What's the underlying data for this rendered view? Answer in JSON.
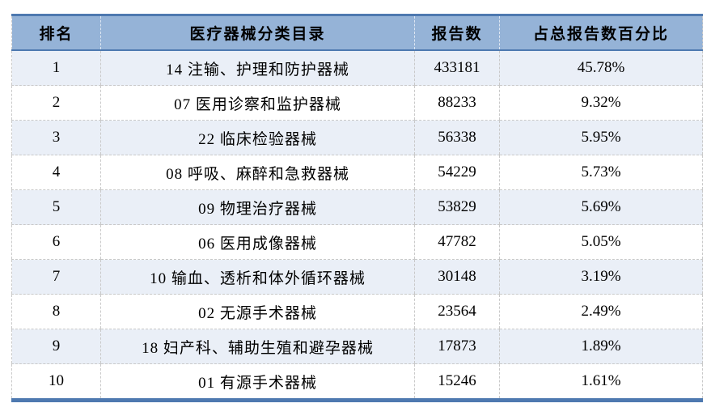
{
  "table": {
    "columns": [
      {
        "label": "排名"
      },
      {
        "label": "医疗器械分类目录"
      },
      {
        "label": "报告数"
      },
      {
        "label": "占总报告数百分比"
      }
    ],
    "rows": [
      {
        "rank": "1",
        "category": "14 注输、护理和防护器械",
        "reports": "433181",
        "percent": "45.78%"
      },
      {
        "rank": "2",
        "category": "07 医用诊察和监护器械",
        "reports": "88233",
        "percent": "9.32%"
      },
      {
        "rank": "3",
        "category": "22 临床检验器械",
        "reports": "56338",
        "percent": "5.95%"
      },
      {
        "rank": "4",
        "category": "08 呼吸、麻醉和急救器械",
        "reports": "54229",
        "percent": "5.73%"
      },
      {
        "rank": "5",
        "category": "09 物理治疗器械",
        "reports": "53829",
        "percent": "5.69%"
      },
      {
        "rank": "6",
        "category": "06 医用成像器械",
        "reports": "47782",
        "percent": "5.05%"
      },
      {
        "rank": "7",
        "category": "10 输血、透析和体外循环器械",
        "reports": "30148",
        "percent": "3.19%"
      },
      {
        "rank": "8",
        "category": "02 无源手术器械",
        "reports": "23564",
        "percent": "2.49%"
      },
      {
        "rank": "9",
        "category": "18 妇产科、辅助生殖和避孕器械",
        "reports": "17873",
        "percent": "1.89%"
      },
      {
        "rank": "10",
        "category": "01 有源手术器械",
        "reports": "15246",
        "percent": "1.61%"
      }
    ]
  },
  "colors": {
    "header_bg": "#95b3d7",
    "header_border": "#4e79b0",
    "banded_row_bg": "#eaeff7",
    "grid_line": "#c9c9c9",
    "bottom_rule": "#4e79b0"
  }
}
